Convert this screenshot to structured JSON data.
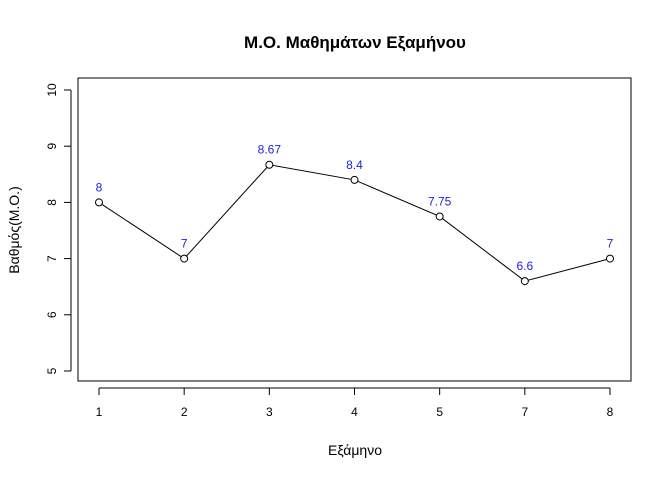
{
  "chart_data": {
    "type": "line",
    "title": "Μ.Ο. Μαθημάτων Εξαμήνου",
    "xlabel": "Εξάμηνο",
    "ylabel": "Βαθμός(Μ.Ο.)",
    "categories": [
      "1",
      "2",
      "3",
      "4",
      "5",
      "7",
      "8"
    ],
    "values": [
      8,
      7,
      8.67,
      8.4,
      7.75,
      6.6,
      7
    ],
    "data_labels": [
      "8",
      "7",
      "8.67",
      "8.4",
      "7.75",
      "6.6",
      "7"
    ],
    "ylim": [
      5,
      10
    ],
    "yticks": [
      "5",
      "6",
      "7",
      "8",
      "9",
      "10"
    ],
    "grid": false,
    "legend": "none",
    "colors": {
      "line": "#000000",
      "marker": "#000000",
      "data_label": "#1f1fd6"
    }
  }
}
